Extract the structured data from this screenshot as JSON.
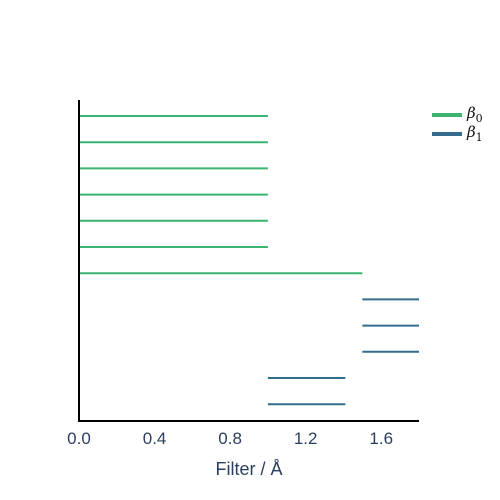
{
  "chart_data": {
    "type": "barcode",
    "xlabel": "Filter / Å",
    "xlim": [
      0.0,
      1.8
    ],
    "xticks": [
      "0.0",
      "0.4",
      "0.8",
      "1.2",
      "1.6"
    ],
    "xtick_values": [
      0.0,
      0.4,
      0.8,
      1.2,
      1.6
    ],
    "grid": false,
    "legend_position": "top-right",
    "series": [
      {
        "name": "β0",
        "name_base": "β",
        "name_sub": "0",
        "color": "#3cb371",
        "intervals": [
          [
            0.0,
            1.0
          ],
          [
            0.0,
            1.0
          ],
          [
            0.0,
            1.0
          ],
          [
            0.0,
            1.0
          ],
          [
            0.0,
            1.0
          ],
          [
            0.0,
            1.0
          ],
          [
            0.0,
            1.5
          ]
        ]
      },
      {
        "name": "β1",
        "name_base": "β",
        "name_sub": "1",
        "color": "#336c8c",
        "intervals": [
          [
            1.5,
            1.8
          ],
          [
            1.5,
            1.8
          ],
          [
            1.5,
            1.8
          ],
          [
            1.0,
            1.41
          ],
          [
            1.0,
            1.41
          ]
        ]
      }
    ]
  }
}
